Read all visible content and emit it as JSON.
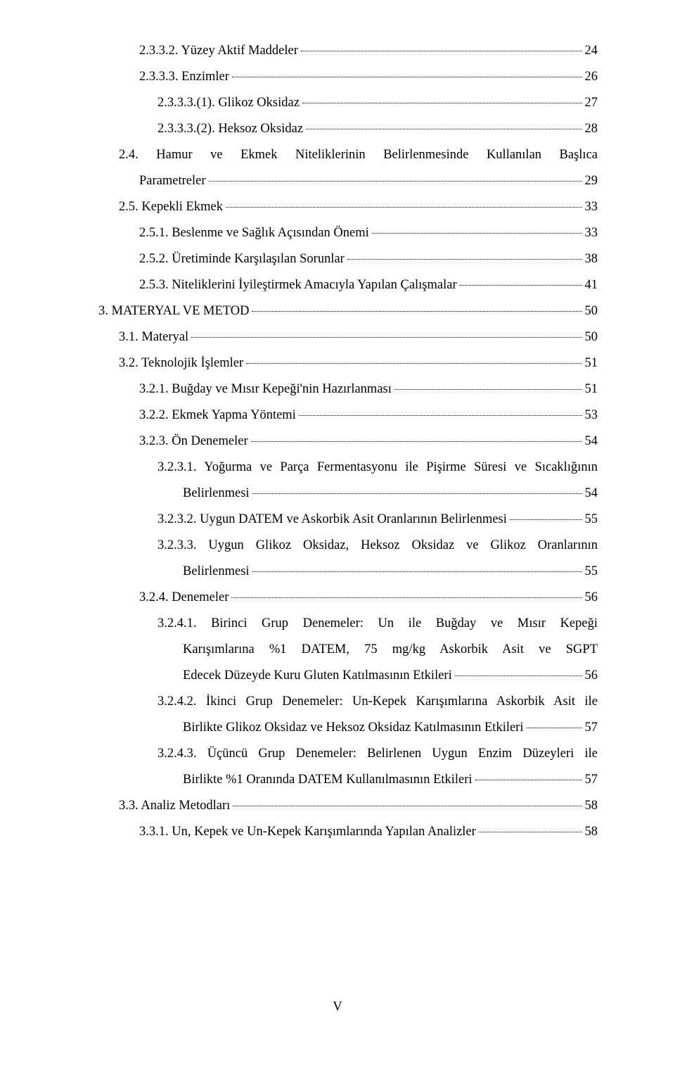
{
  "entries": [
    {
      "indent": "indent-2",
      "text": "2.3.3.2. Yüzey Aktif Maddeler",
      "page": "24"
    },
    {
      "indent": "indent-2",
      "text": "2.3.3.3. Enzimler",
      "page": "26"
    },
    {
      "indent": "indent-3",
      "text": "2.3.3.3.(1). Glikoz Oksidaz",
      "page": "27"
    },
    {
      "indent": "indent-3",
      "text": "2.3.3.3.(2). Heksoz Oksidaz",
      "page": "28"
    },
    {
      "indent": "indent-1",
      "multi": true,
      "lines": [
        "2.4.  Hamur  ve  Ekmek  Niteliklerinin  Belirlenmesinde  Kullanılan  Başlıca"
      ],
      "lastIndent": "indent-2",
      "last": "Parametreler",
      "page": "29"
    },
    {
      "indent": "indent-1",
      "text": "2.5. Kepekli Ekmek",
      "page": "33"
    },
    {
      "indent": "indent-2",
      "text": "2.5.1. Beslenme ve Sağlık Açısından Önemi",
      "page": "33"
    },
    {
      "indent": "indent-2",
      "text": "2.5.2. Üretiminde Karşılaşılan Sorunlar",
      "page": "38"
    },
    {
      "indent": "indent-2",
      "text": "2.5.3. Niteliklerini İyileştirmek Amacıyla Yapılan Çalışmalar",
      "page": "41"
    },
    {
      "indent": "",
      "text": "3. MATERYAL VE METOD",
      "page": "50"
    },
    {
      "indent": "indent-1",
      "text": "3.1. Materyal",
      "page": "50"
    },
    {
      "indent": "indent-1",
      "text": "3.2. Teknolojik İşlemler",
      "page": "51"
    },
    {
      "indent": "indent-2",
      "text": "3.2.1. Buğday ve Mısır Kepeği'nin Hazırlanması",
      "page": "51"
    },
    {
      "indent": "indent-2",
      "text": "3.2.2. Ekmek Yapma Yöntemi",
      "page": "53"
    },
    {
      "indent": "indent-2",
      "text": "3.2.3. Ön Denemeler",
      "page": "54"
    },
    {
      "indent": "indent-3b",
      "multi": true,
      "lines": [
        "3.2.3.1. Yoğurma ve Parça Fermentasyonu ile Pişirme Süresi ve Sıcaklığının"
      ],
      "lastIndent": "indent-4",
      "last": "Belirlenmesi",
      "page": "54"
    },
    {
      "indent": "indent-3b",
      "text": "3.2.3.2. Uygun DATEM ve Askorbik Asit Oranlarının Belirlenmesi",
      "page": "55"
    },
    {
      "indent": "indent-3b",
      "multi": true,
      "lines": [
        "3.2.3.3.  Uygun  Glikoz  Oksidaz,  Heksoz  Oksidaz  ve  Glikoz  Oranlarının"
      ],
      "lastIndent": "indent-4",
      "last": "Belirlenmesi",
      "page": "55"
    },
    {
      "indent": "indent-2",
      "text": "3.2.4. Denemeler",
      "page": "56"
    },
    {
      "indent": "indent-3b",
      "multi": true,
      "lines": [
        "3.2.4.1.  Birinci  Grup  Denemeler:  Un  ile  Buğday  ve  Mısır  Kepeği",
        "Karışımlarına  %1  DATEM,  75  mg/kg  Askorbik  Asit  ve  SGPT"
      ],
      "lastIndent": "indent-4",
      "contIndent": "indent-4",
      "last": "Edecek Düzeyde Kuru Gluten Katılmasının Etkileri",
      "page": "56"
    },
    {
      "indent": "indent-3b",
      "multi": true,
      "lines": [
        "3.2.4.2. İkinci Grup Denemeler: Un-Kepek Karışımlarına Askorbik Asit ile"
      ],
      "lastIndent": "indent-4",
      "last": "Birlikte Glikoz Oksidaz ve Heksoz Oksidaz Katılmasının Etkileri",
      "page": "57"
    },
    {
      "indent": "indent-3b",
      "multi": true,
      "lines": [
        "3.2.4.3. Üçüncü Grup Denemeler: Belirlenen Uygun Enzim Düzeyleri ile"
      ],
      "lastIndent": "indent-4",
      "last": "Birlikte %1 Oranında DATEM Kullanılmasının Etkileri",
      "page": "57"
    },
    {
      "indent": "indent-1",
      "text": "3.3. Analiz Metodları",
      "page": "58"
    },
    {
      "indent": "indent-2",
      "text": "3.3.1. Un, Kepek ve Un-Kepek Karışımlarında Yapılan Analizler",
      "page": "58"
    }
  ],
  "pageNumber": "V"
}
